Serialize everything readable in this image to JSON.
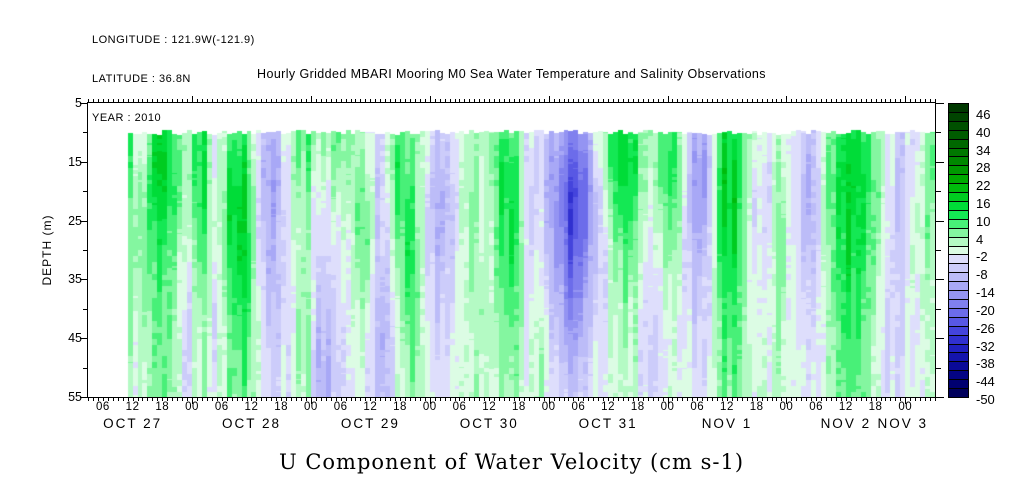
{
  "header": {
    "longitude_line": "LONGITUDE : 121.9W(-121.9)",
    "latitude_line": "LATITUDE : 36.8N",
    "year_line": "YEAR : 2010"
  },
  "title": "Hourly Gridded MBARI Mooring M0 Sea Water Temperature and Salinity Observations",
  "xlabel": "U Component of Water Velocity (cm s-1)",
  "ylabel": "DEPTH (m)",
  "chart_data": {
    "type": "heatmap",
    "title": "Hourly Gridded MBARI Mooring M0 Sea Water Temperature and Salinity Observations",
    "variable": "U Component of Water Velocity (cm s-1)",
    "x_axis": {
      "start": "2010-10-27 03:00",
      "end": "2010-11-03 06:00",
      "total_hours": 171,
      "hour_labels": [
        [
          3,
          "06"
        ],
        [
          9,
          "12"
        ],
        [
          15,
          "18"
        ],
        [
          21,
          "00"
        ],
        [
          27,
          "06"
        ],
        [
          33,
          "12"
        ],
        [
          39,
          "18"
        ],
        [
          45,
          "00"
        ],
        [
          51,
          "06"
        ],
        [
          57,
          "12"
        ],
        [
          63,
          "18"
        ],
        [
          69,
          "00"
        ],
        [
          75,
          "06"
        ],
        [
          81,
          "12"
        ],
        [
          87,
          "18"
        ],
        [
          93,
          "00"
        ],
        [
          99,
          "06"
        ],
        [
          105,
          "12"
        ],
        [
          111,
          "18"
        ],
        [
          117,
          "00"
        ],
        [
          123,
          "06"
        ],
        [
          129,
          "12"
        ],
        [
          135,
          "18"
        ],
        [
          141,
          "00"
        ],
        [
          147,
          "06"
        ],
        [
          153,
          "12"
        ],
        [
          159,
          "18"
        ],
        [
          165,
          "00"
        ]
      ],
      "date_labels": [
        [
          9,
          "OCT 27"
        ],
        [
          33,
          "OCT 28"
        ],
        [
          57,
          "OCT 29"
        ],
        [
          81,
          "OCT 30"
        ],
        [
          105,
          "OCT 31"
        ],
        [
          129,
          "NOV 1"
        ],
        [
          153,
          "NOV 2"
        ],
        [
          164.5,
          "NOV 3"
        ]
      ]
    },
    "y_axis": {
      "label": "DEPTH (m)",
      "range": [
        5,
        55
      ],
      "major_ticks": [
        5,
        15,
        25,
        35,
        45,
        55
      ],
      "minor_ticks": [
        10,
        20,
        30,
        40,
        50
      ]
    },
    "colorbar": {
      "min": -50,
      "max": 49,
      "step": 3,
      "labels": [
        46,
        40,
        34,
        28,
        22,
        16,
        10,
        4,
        -2,
        -8,
        -14,
        -20,
        -26,
        -32,
        -38,
        -44,
        -50
      ],
      "palette": [
        "#003800",
        "#004400",
        "#005000",
        "#005c00",
        "#006800",
        "#007800",
        "#008800",
        "#009800",
        "#00aa00",
        "#00bc0c",
        "#00cc20",
        "#00dc38",
        "#14e854",
        "#48f078",
        "#84f6a0",
        "#b4fac4",
        "#dcfce4",
        "#dedefc",
        "#ccccfa",
        "#bcbcf8",
        "#a8a8f6",
        "#9494f2",
        "#8080ee",
        "#6c6cea",
        "#5858e4",
        "#4444dc",
        "#3030d0",
        "#2020c0",
        "#1414ac",
        "#0a0a98",
        "#040484",
        "#000070",
        "#00005c"
      ]
    },
    "grid": {
      "t0_hours": 8,
      "dt_hours": 3,
      "depths": [
        10,
        15,
        20,
        25,
        30,
        35,
        40,
        45,
        50,
        55
      ],
      "values": [
        [
          12,
          10,
          8,
          6,
          5,
          4,
          3,
          2,
          2,
          2
        ],
        [
          -5,
          -3,
          2,
          4,
          4,
          3,
          2,
          1,
          0,
          0
        ],
        [
          16,
          18,
          16,
          12,
          10,
          8,
          7,
          6,
          6,
          5
        ],
        [
          8,
          10,
          10,
          8,
          6,
          5,
          4,
          4,
          3,
          3
        ],
        [
          2,
          2,
          1,
          0,
          -2,
          -4,
          -5,
          -6,
          -6,
          -5
        ],
        [
          14,
          15,
          14,
          12,
          10,
          8,
          6,
          5,
          4,
          4
        ],
        [
          -4,
          -4,
          -3,
          -2,
          -2,
          -3,
          -4,
          -4,
          -3,
          -2
        ],
        [
          10,
          14,
          16,
          16,
          14,
          12,
          10,
          8,
          8,
          6
        ],
        [
          8,
          12,
          14,
          15,
          16,
          14,
          12,
          10,
          8,
          7
        ],
        [
          -6,
          -8,
          -8,
          -8,
          -7,
          -6,
          -4,
          -2,
          -2,
          -2
        ],
        [
          -10,
          -12,
          -12,
          -10,
          -9,
          -8,
          -7,
          -6,
          -5,
          -4
        ],
        [
          4,
          3,
          2,
          1,
          0,
          -1,
          -2,
          -2,
          -1,
          -1
        ],
        [
          10,
          8,
          5,
          4,
          4,
          5,
          6,
          7,
          6,
          5
        ],
        [
          2,
          0,
          -3,
          -5,
          -6,
          -8,
          -10,
          -12,
          -13,
          -12
        ],
        [
          8,
          6,
          3,
          0,
          -2,
          -3,
          -4,
          -5,
          -6,
          -6
        ],
        [
          4,
          3,
          1,
          0,
          -1,
          -1,
          -2,
          -2,
          -3,
          -3
        ],
        [
          2,
          4,
          8,
          10,
          9,
          7,
          4,
          2,
          0,
          -1
        ],
        [
          -6,
          -7,
          -8,
          -8,
          -8,
          -9,
          -10,
          -11,
          -10,
          -9
        ],
        [
          8,
          10,
          8,
          5,
          2,
          0,
          -2,
          -3,
          -4,
          -4
        ],
        [
          8,
          10,
          12,
          14,
          15,
          14,
          12,
          10,
          8,
          6
        ],
        [
          0,
          -2,
          -3,
          -4,
          -4,
          -3,
          -2,
          -1,
          0,
          0
        ],
        [
          -8,
          -10,
          -12,
          -12,
          -10,
          -9,
          -8,
          -6,
          -5,
          -4
        ],
        [
          -4,
          -6,
          -7,
          -7,
          -6,
          -5,
          -4,
          -3,
          -3,
          -2
        ],
        [
          4,
          5,
          6,
          6,
          5,
          4,
          3,
          2,
          2,
          2
        ],
        [
          0,
          -1,
          -2,
          -2,
          -1,
          0,
          1,
          1,
          0,
          0
        ],
        [
          10,
          12,
          12,
          10,
          9,
          8,
          6,
          5,
          4,
          3
        ],
        [
          8,
          10,
          12,
          13,
          12,
          10,
          8,
          6,
          5,
          4
        ],
        [
          -5,
          -6,
          -7,
          -7,
          -6,
          -5,
          -4,
          -3,
          -3,
          -2
        ],
        [
          -6,
          -7,
          -6,
          -5,
          -4,
          -2,
          0,
          2,
          3,
          2
        ],
        [
          -12,
          -15,
          -18,
          -18,
          -16,
          -14,
          -12,
          -10,
          -8,
          -6
        ],
        [
          -18,
          -24,
          -28,
          -28,
          -26,
          -22,
          -18,
          -14,
          -10,
          -8
        ],
        [
          -12,
          -16,
          -18,
          -17,
          -15,
          -12,
          -10,
          -8,
          -6,
          -5
        ],
        [
          4,
          2,
          -2,
          -4,
          -5,
          -5,
          -4,
          -3,
          -2,
          -2
        ],
        [
          14,
          15,
          13,
          10,
          7,
          5,
          3,
          2,
          1,
          1
        ],
        [
          12,
          14,
          12,
          10,
          8,
          6,
          4,
          3,
          2,
          2
        ],
        [
          2,
          1,
          0,
          -2,
          -3,
          -4,
          -5,
          -6,
          -6,
          -5
        ],
        [
          8,
          9,
          8,
          5,
          2,
          0,
          -2,
          -3,
          -3,
          -2
        ],
        [
          10,
          12,
          10,
          8,
          6,
          4,
          2,
          1,
          1,
          1
        ],
        [
          -10,
          -12,
          -13,
          -12,
          -10,
          -8,
          -6,
          -4,
          -3,
          -2
        ],
        [
          -12,
          -14,
          -13,
          -11,
          -9,
          -7,
          -6,
          -5,
          -4,
          -3
        ],
        [
          14,
          16,
          16,
          15,
          13,
          11,
          9,
          8,
          7,
          6
        ],
        [
          12,
          15,
          16,
          15,
          14,
          12,
          10,
          9,
          8,
          7
        ],
        [
          2,
          0,
          -2,
          -3,
          -3,
          -2,
          -1,
          0,
          1,
          1
        ],
        [
          -4,
          -5,
          -6,
          -6,
          -5,
          -4,
          -3,
          -2,
          -2,
          -1
        ],
        [
          2,
          3,
          5,
          6,
          6,
          5,
          4,
          3,
          2,
          2
        ],
        [
          -4,
          -5,
          -6,
          -6,
          -5,
          -4,
          -4,
          -3,
          -2,
          -2
        ],
        [
          -8,
          -10,
          -11,
          -10,
          -8,
          -6,
          -4,
          -3,
          -2,
          -2
        ],
        [
          2,
          4,
          4,
          3,
          2,
          1,
          1,
          0,
          0,
          0
        ],
        [
          12,
          14,
          15,
          14,
          13,
          12,
          10,
          9,
          8,
          7
        ],
        [
          14,
          16,
          16,
          15,
          14,
          12,
          11,
          10,
          9,
          8
        ],
        [
          8,
          10,
          10,
          9,
          8,
          7,
          6,
          5,
          4,
          4
        ],
        [
          2,
          2,
          1,
          0,
          -1,
          -2,
          -3,
          -4,
          -4,
          -3
        ],
        [
          -6,
          -8,
          -9,
          -9,
          -8,
          -7,
          -6,
          -5,
          -4,
          -3
        ],
        [
          -3,
          -2,
          0,
          2,
          2,
          1,
          0,
          -1,
          -1,
          0
        ],
        [
          6,
          7,
          6,
          5,
          4,
          3,
          2,
          2,
          1,
          1
        ]
      ]
    }
  }
}
